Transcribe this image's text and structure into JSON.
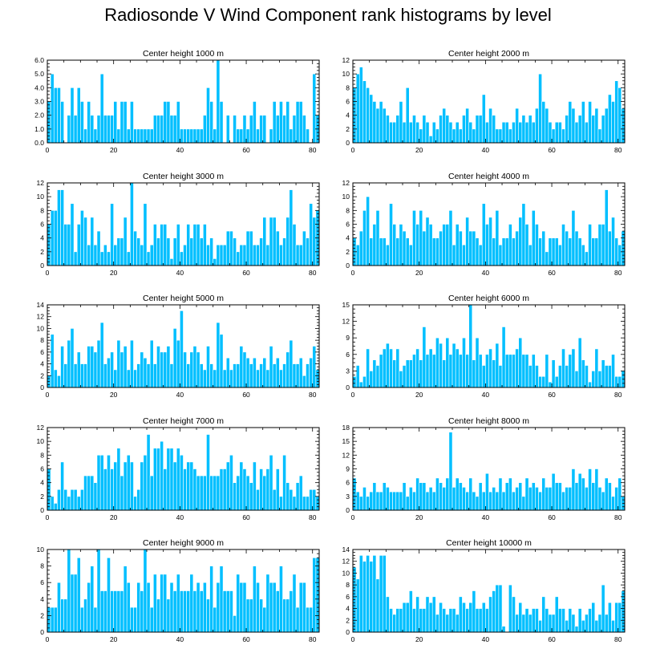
{
  "title": "Radiosonde V Wind Component rank histograms by level",
  "colors": {
    "bar": "#00BFFF",
    "bar_edge": "#ffffff",
    "frame": "#000000"
  },
  "chart_data": [
    {
      "type": "bar",
      "title": "Center height 1000 m",
      "xlim": [
        0,
        82
      ],
      "xticks": [
        0,
        20,
        40,
        60,
        80
      ],
      "ylim": [
        0,
        6
      ],
      "yticks": [
        0,
        1,
        2,
        3,
        4,
        5,
        6
      ],
      "ytick_labels": [
        "0.0",
        "1.0",
        "2.0",
        "3.0",
        "4.0",
        "5.0",
        "6.0"
      ],
      "values": [
        3,
        5,
        4,
        4,
        3,
        0,
        2,
        4,
        2,
        4,
        3,
        1,
        3,
        2,
        1,
        2,
        5,
        2,
        2,
        2,
        3,
        1,
        3,
        3,
        1,
        3,
        1,
        1,
        1,
        1,
        1,
        1,
        2,
        2,
        2,
        3,
        3,
        2,
        2,
        3,
        1,
        1,
        1,
        1,
        1,
        1,
        1,
        2,
        4,
        3,
        1,
        6,
        3,
        0,
        2,
        0,
        2,
        1,
        1,
        2,
        1,
        2,
        3,
        1,
        2,
        2,
        0,
        1,
        3,
        2,
        3,
        2,
        3,
        1,
        2,
        3,
        3,
        2,
        1,
        0,
        5,
        2
      ]
    },
    {
      "type": "bar",
      "title": "Center height 2000 m",
      "xlim": [
        0,
        82
      ],
      "xticks": [
        0,
        20,
        40,
        60,
        80
      ],
      "ylim": [
        0,
        12
      ],
      "yticks": [
        0,
        2,
        4,
        6,
        8,
        10,
        12
      ],
      "ytick_labels": [
        "0",
        "2",
        "4",
        "6",
        "8",
        "10",
        "12"
      ],
      "values": [
        8,
        10,
        11,
        9,
        8,
        7,
        6,
        5,
        6,
        5,
        4,
        3,
        3,
        4,
        6,
        3,
        8,
        3,
        4,
        3,
        2,
        4,
        3,
        1,
        3,
        2,
        4,
        5,
        4,
        3,
        2,
        3,
        2,
        4,
        5,
        3,
        2,
        4,
        4,
        7,
        3,
        5,
        4,
        2,
        2,
        3,
        3,
        2,
        3,
        5,
        3,
        4,
        3,
        4,
        3,
        5,
        10,
        6,
        5,
        3,
        2,
        3,
        3,
        2,
        4,
        6,
        5,
        3,
        4,
        6,
        3,
        6,
        4,
        5,
        2,
        4,
        5,
        7,
        6,
        9,
        8,
        5
      ]
    },
    {
      "type": "bar",
      "title": "Center height 3000 m",
      "xlim": [
        0,
        82
      ],
      "xticks": [
        0,
        20,
        40,
        60,
        80
      ],
      "ylim": [
        0,
        12
      ],
      "yticks": [
        0,
        2,
        4,
        6,
        8,
        10,
        12
      ],
      "ytick_labels": [
        "0",
        "2",
        "4",
        "6",
        "8",
        "10",
        "12"
      ],
      "values": [
        6,
        8,
        8,
        11,
        11,
        6,
        6,
        9,
        2,
        6,
        8,
        7,
        3,
        7,
        3,
        5,
        2,
        3,
        2,
        9,
        3,
        4,
        4,
        7,
        2,
        12,
        5,
        4,
        3,
        9,
        2,
        3,
        6,
        4,
        6,
        6,
        4,
        1,
        4,
        6,
        2,
        3,
        6,
        4,
        6,
        6,
        4,
        6,
        3,
        4,
        1,
        3,
        3,
        3,
        5,
        5,
        4,
        2,
        3,
        3,
        5,
        5,
        3,
        3,
        4,
        7,
        3,
        7,
        7,
        5,
        3,
        4,
        7,
        11,
        6,
        3,
        3,
        5,
        4,
        9,
        7,
        8
      ]
    },
    {
      "type": "bar",
      "title": "Center height 4000 m",
      "xlim": [
        0,
        82
      ],
      "xticks": [
        0,
        20,
        40,
        60,
        80
      ],
      "ylim": [
        0,
        12
      ],
      "yticks": [
        0,
        2,
        4,
        6,
        8,
        10,
        12
      ],
      "ytick_labels": [
        "0",
        "2",
        "4",
        "6",
        "8",
        "10",
        "12"
      ],
      "values": [
        4,
        3,
        5,
        8,
        10,
        4,
        6,
        8,
        4,
        4,
        3,
        9,
        6,
        4,
        6,
        5,
        4,
        3,
        8,
        6,
        8,
        5,
        7,
        6,
        4,
        4,
        5,
        6,
        6,
        8,
        3,
        6,
        5,
        3,
        7,
        5,
        5,
        4,
        3,
        9,
        6,
        7,
        4,
        8,
        3,
        4,
        4,
        6,
        4,
        5,
        7,
        9,
        6,
        3,
        8,
        6,
        4,
        5,
        2,
        4,
        4,
        4,
        3,
        6,
        5,
        4,
        8,
        5,
        4,
        3,
        2,
        6,
        4,
        4,
        6,
        6,
        11,
        5,
        7,
        4,
        3,
        5
      ]
    },
    {
      "type": "bar",
      "title": "Center height 5000 m",
      "xlim": [
        0,
        82
      ],
      "xticks": [
        0,
        20,
        40,
        60,
        80
      ],
      "ylim": [
        0,
        14
      ],
      "yticks": [
        0,
        2,
        4,
        6,
        8,
        10,
        12,
        14
      ],
      "ytick_labels": [
        "0",
        "2",
        "4",
        "6",
        "8",
        "10",
        "12",
        "14"
      ],
      "values": [
        2,
        9,
        3,
        2,
        7,
        4,
        8,
        10,
        4,
        6,
        4,
        4,
        7,
        7,
        6,
        8,
        11,
        4,
        5,
        6,
        3,
        8,
        6,
        7,
        3,
        8,
        3,
        4,
        6,
        5,
        4,
        8,
        4,
        7,
        6,
        6,
        7,
        4,
        10,
        8,
        13,
        6,
        4,
        6,
        7,
        6,
        4,
        3,
        7,
        4,
        3,
        11,
        9,
        3,
        5,
        3,
        4,
        4,
        7,
        6,
        5,
        4,
        5,
        3,
        4,
        5,
        3,
        7,
        4,
        5,
        3,
        4,
        6,
        8,
        4,
        4,
        5,
        2,
        4,
        5,
        7,
        3
      ]
    },
    {
      "type": "bar",
      "title": "Center height 6000 m",
      "xlim": [
        0,
        82
      ],
      "xticks": [
        0,
        20,
        40,
        60,
        80
      ],
      "ylim": [
        0,
        15
      ],
      "yticks": [
        0,
        3,
        6,
        9,
        12,
        15
      ],
      "ytick_labels": [
        "0",
        "3",
        "6",
        "9",
        "12",
        "15"
      ],
      "values": [
        2,
        4,
        1,
        2,
        7,
        3,
        5,
        4,
        6,
        7,
        8,
        7,
        5,
        7,
        3,
        4,
        5,
        5,
        6,
        7,
        5,
        11,
        6,
        7,
        6,
        9,
        8,
        5,
        9,
        6,
        8,
        7,
        6,
        9,
        6,
        15,
        5,
        9,
        6,
        4,
        6,
        7,
        5,
        8,
        4,
        11,
        6,
        6,
        6,
        7,
        9,
        6,
        6,
        4,
        6,
        4,
        2,
        2,
        6,
        1,
        5,
        2,
        4,
        7,
        4,
        6,
        7,
        3,
        9,
        5,
        4,
        1,
        3,
        7,
        3,
        5,
        4,
        4,
        6,
        2,
        2,
        3
      ]
    },
    {
      "type": "bar",
      "title": "Center height 7000 m",
      "xlim": [
        0,
        82
      ],
      "xticks": [
        0,
        20,
        40,
        60,
        80
      ],
      "ylim": [
        0,
        12
      ],
      "yticks": [
        0,
        2,
        4,
        6,
        8,
        10,
        12
      ],
      "ytick_labels": [
        "0",
        "2",
        "4",
        "6",
        "8",
        "10",
        "12"
      ],
      "values": [
        6,
        2,
        1,
        3,
        7,
        3,
        2,
        3,
        3,
        2,
        3,
        5,
        5,
        5,
        4,
        8,
        8,
        6,
        8,
        6,
        7,
        9,
        5,
        7,
        8,
        7,
        2,
        3,
        7,
        8,
        11,
        5,
        9,
        9,
        10,
        6,
        9,
        9,
        7,
        9,
        8,
        6,
        7,
        7,
        6,
        5,
        5,
        5,
        11,
        5,
        5,
        5,
        6,
        6,
        7,
        8,
        4,
        5,
        7,
        6,
        5,
        4,
        7,
        3,
        6,
        5,
        6,
        8,
        3,
        6,
        2,
        8,
        4,
        3,
        2,
        4,
        5,
        2,
        2,
        3,
        3,
        2
      ]
    },
    {
      "type": "bar",
      "title": "Center height 8000 m",
      "xlim": [
        0,
        82
      ],
      "xticks": [
        0,
        20,
        40,
        60,
        80
      ],
      "ylim": [
        0,
        18
      ],
      "yticks": [
        0,
        3,
        6,
        9,
        12,
        15,
        18
      ],
      "ytick_labels": [
        "0",
        "3",
        "6",
        "9",
        "12",
        "15",
        "18"
      ],
      "values": [
        7,
        4,
        3,
        5,
        3,
        4,
        6,
        4,
        4,
        6,
        5,
        4,
        4,
        4,
        4,
        6,
        3,
        5,
        4,
        7,
        6,
        6,
        4,
        5,
        4,
        7,
        6,
        5,
        7,
        17,
        5,
        7,
        6,
        5,
        4,
        7,
        4,
        3,
        6,
        4,
        8,
        4,
        5,
        4,
        7,
        4,
        6,
        7,
        4,
        5,
        6,
        3,
        7,
        5,
        6,
        5,
        4,
        7,
        5,
        5,
        8,
        6,
        6,
        4,
        5,
        5,
        9,
        6,
        8,
        7,
        5,
        9,
        6,
        9,
        5,
        4,
        7,
        6,
        3,
        5,
        7,
        3
      ]
    },
    {
      "type": "bar",
      "title": "Center height 9000 m",
      "xlim": [
        0,
        82
      ],
      "xticks": [
        0,
        20,
        40,
        60,
        80
      ],
      "ylim": [
        0,
        10
      ],
      "yticks": [
        0,
        2,
        4,
        6,
        8,
        10
      ],
      "ytick_labels": [
        "0",
        "2",
        "4",
        "6",
        "8",
        "10"
      ],
      "values": [
        3,
        3,
        3,
        6,
        4,
        4,
        10,
        7,
        7,
        9,
        3,
        4,
        6,
        8,
        3,
        10,
        5,
        5,
        9,
        5,
        5,
        5,
        5,
        8,
        6,
        3,
        3,
        6,
        5,
        10,
        6,
        3,
        7,
        4,
        7,
        7,
        4,
        6,
        5,
        7,
        5,
        5,
        5,
        7,
        5,
        6,
        5,
        6,
        4,
        8,
        3,
        6,
        8,
        5,
        5,
        5,
        2,
        7,
        6,
        6,
        4,
        4,
        8,
        6,
        4,
        3,
        7,
        6,
        6,
        5,
        8,
        4,
        4,
        5,
        7,
        3,
        6,
        6,
        3,
        3,
        9,
        9
      ]
    },
    {
      "type": "bar",
      "title": "Center height 10000 m",
      "xlim": [
        0,
        82
      ],
      "xticks": [
        0,
        20,
        40,
        60,
        80
      ],
      "ylim": [
        0,
        14
      ],
      "yticks": [
        0,
        2,
        4,
        6,
        8,
        10,
        12,
        14
      ],
      "ytick_labels": [
        "0",
        "2",
        "4",
        "6",
        "8",
        "10",
        "12",
        "14"
      ],
      "values": [
        11,
        9,
        13,
        12,
        13,
        12,
        13,
        9,
        13,
        13,
        6,
        4,
        3,
        4,
        4,
        5,
        5,
        7,
        4,
        6,
        4,
        4,
        6,
        5,
        6,
        3,
        5,
        4,
        3,
        4,
        4,
        3,
        6,
        5,
        4,
        5,
        7,
        4,
        4,
        5,
        4,
        6,
        7,
        8,
        8,
        1,
        0,
        8,
        6,
        3,
        5,
        3,
        4,
        3,
        4,
        4,
        2,
        6,
        4,
        3,
        3,
        6,
        4,
        4,
        2,
        4,
        3,
        1,
        4,
        2,
        3,
        4,
        5,
        2,
        3,
        8,
        3,
        5,
        2,
        5,
        5,
        7
      ]
    }
  ]
}
